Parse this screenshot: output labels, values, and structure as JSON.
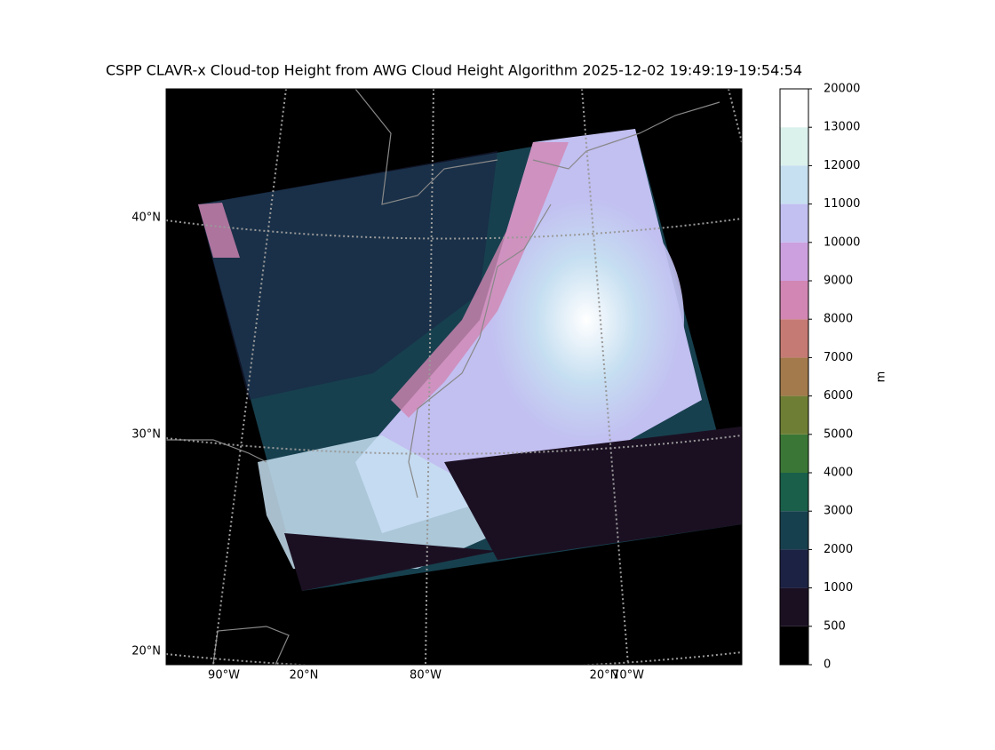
{
  "title": "CSPP CLAVR-x Cloud-top Height from AWG Cloud Height Algorithm 2025-12-02 19:49:19-19:54:54",
  "map": {
    "lat_labels": [
      "40°N",
      "30°N",
      "20°N"
    ],
    "lon_labels": [
      "90°W",
      "20°N",
      "80°W",
      "20°N",
      "70°W"
    ]
  },
  "colorbar": {
    "label": "m",
    "ticks": [
      0,
      500,
      1000,
      2000,
      3000,
      4000,
      5000,
      6000,
      7000,
      8000,
      9000,
      10000,
      11000,
      12000,
      13000,
      20000
    ],
    "colors": [
      "#000000",
      "#1b1022",
      "#1c2244",
      "#17404e",
      "#1a5f4a",
      "#3a7736",
      "#6e7f35",
      "#a27a4b",
      "#c67a74",
      "#d286b3",
      "#cca0de",
      "#c2bff1",
      "#c6dff1",
      "#daf1ec",
      "#ffffff"
    ]
  }
}
